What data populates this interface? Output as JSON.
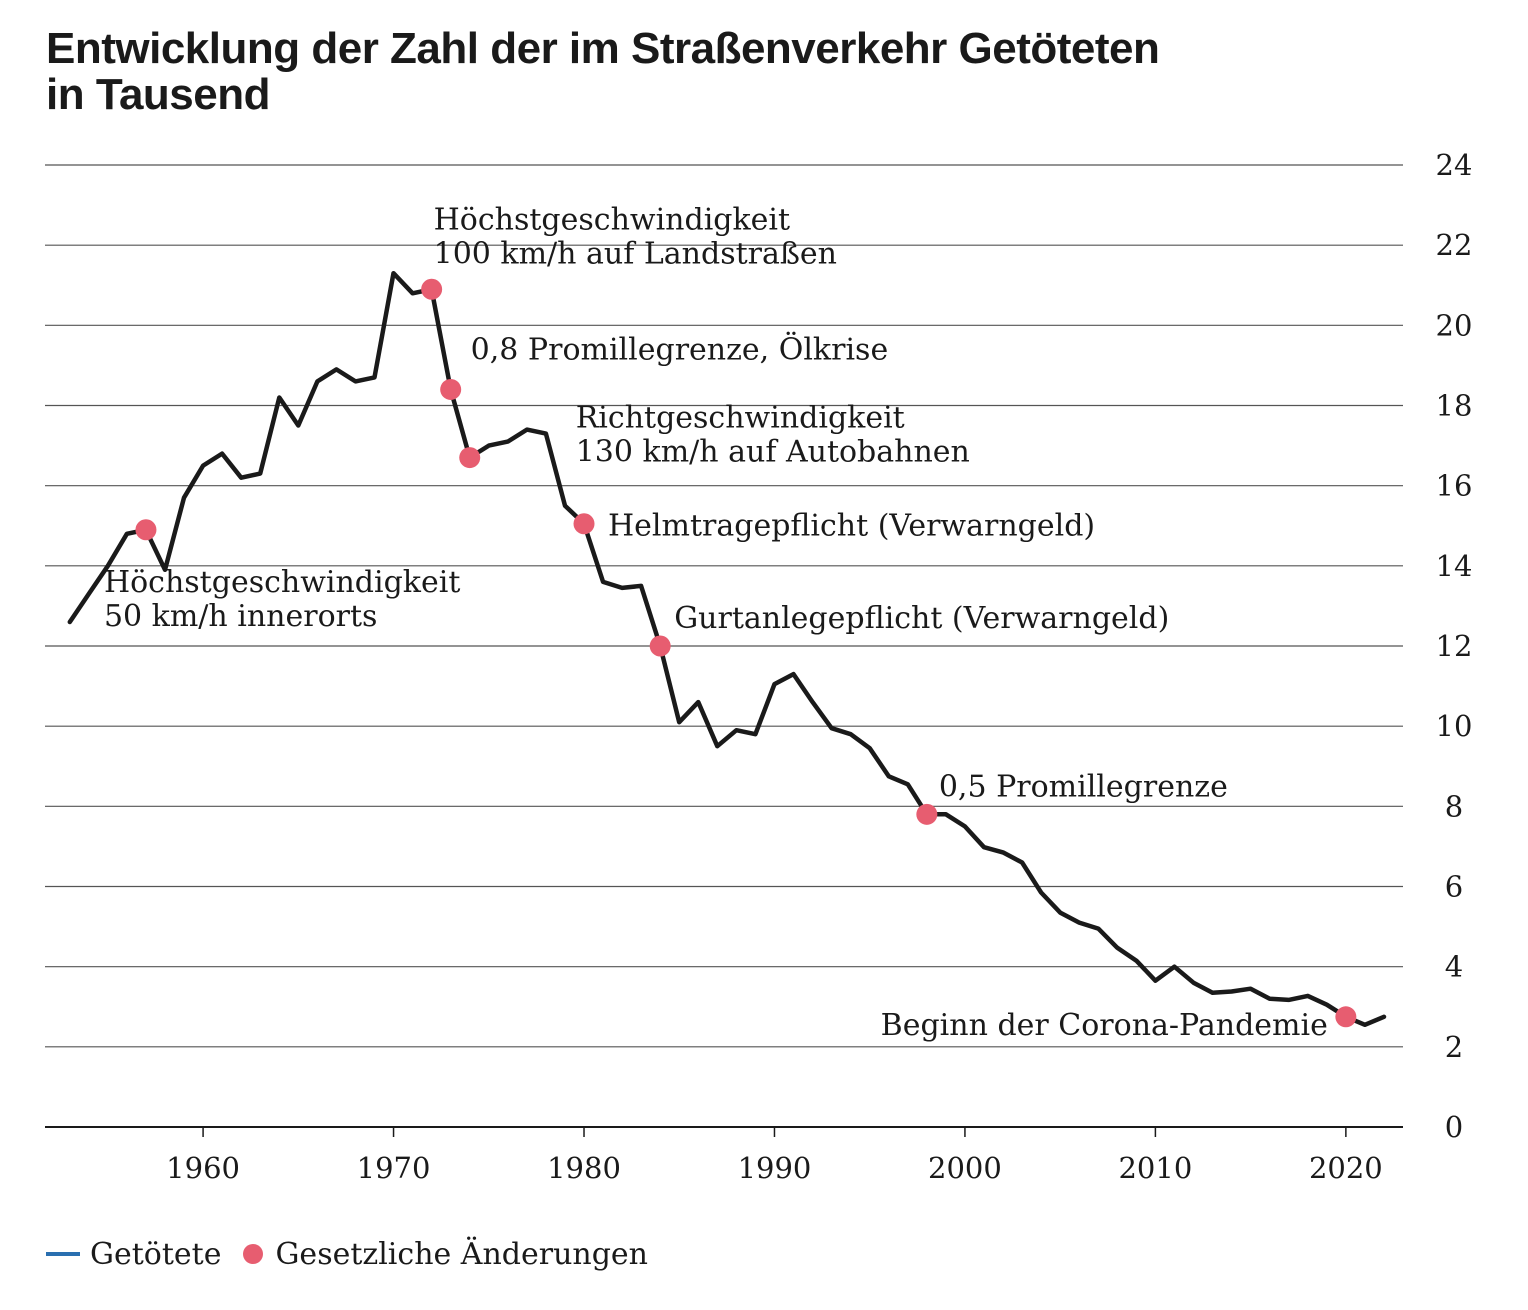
{
  "title": {
    "line1": "Entwicklung der Zahl der im Straßenverkehr Getöteten",
    "line2": "in Tausend"
  },
  "legend": {
    "line_label": "Getötete",
    "dot_label": "Gesetzliche Änderungen"
  },
  "colors": {
    "line": "#1a1a1a",
    "marker": "#e75d70",
    "legend_line": "#2a6fb0",
    "grid": "#555555"
  },
  "chart_data": {
    "type": "line",
    "title": "Entwicklung der Zahl der im Straßenverkehr Getöteten in Tausend",
    "xlabel": "",
    "ylabel": "",
    "xlim": [
      1951.7,
      2023
    ],
    "ylim": [
      0,
      24
    ],
    "x_ticks": [
      1960,
      1970,
      1980,
      1990,
      2000,
      2010,
      2020
    ],
    "y_ticks": [
      0,
      2,
      4,
      6,
      8,
      10,
      12,
      14,
      16,
      18,
      20,
      22,
      24
    ],
    "grid": true,
    "legend_position": "bottom-left",
    "series": [
      {
        "name": "Getötete",
        "x": [
          1953,
          1954,
          1955,
          1956,
          1957,
          1958,
          1959,
          1960,
          1961,
          1962,
          1963,
          1964,
          1965,
          1966,
          1967,
          1968,
          1969,
          1970,
          1971,
          1972,
          1973,
          1974,
          1975,
          1976,
          1977,
          1978,
          1979,
          1980,
          1981,
          1982,
          1983,
          1984,
          1985,
          1986,
          1987,
          1988,
          1989,
          1990,
          1991,
          1992,
          1993,
          1994,
          1995,
          1996,
          1997,
          1998,
          1999,
          2000,
          2001,
          2002,
          2003,
          2004,
          2005,
          2006,
          2007,
          2008,
          2009,
          2010,
          2011,
          2012,
          2013,
          2014,
          2015,
          2016,
          2017,
          2018,
          2019,
          2020,
          2021,
          2022
        ],
        "y": [
          12.6,
          13.3,
          14.0,
          14.8,
          14.9,
          13.9,
          15.7,
          16.5,
          16.8,
          16.2,
          16.3,
          18.2,
          17.5,
          18.6,
          18.9,
          18.6,
          18.7,
          21.3,
          20.8,
          20.9,
          18.4,
          16.7,
          17.0,
          17.1,
          17.4,
          17.3,
          15.5,
          15.05,
          13.6,
          13.45,
          13.5,
          12.0,
          10.1,
          10.6,
          9.5,
          9.9,
          9.8,
          11.05,
          11.3,
          10.6,
          9.95,
          9.8,
          9.45,
          8.75,
          8.55,
          7.8,
          7.8,
          7.5,
          6.98,
          6.85,
          6.6,
          5.85,
          5.35,
          5.1,
          4.95,
          4.47,
          4.15,
          3.65,
          4.0,
          3.6,
          3.35,
          3.38,
          3.45,
          3.2,
          3.17,
          3.27,
          3.05,
          2.75,
          2.55,
          2.75
        ]
      },
      {
        "name": "Gesetzliche Änderungen",
        "points": [
          {
            "x": 1957,
            "y": 14.9,
            "label": [
              "Höchstgeschwindigkeit",
              "50 km/h innerorts"
            ]
          },
          {
            "x": 1972,
            "y": 20.9,
            "label": [
              "Höchstgeschwindigkeit",
              "100 km/h auf Landstraßen"
            ]
          },
          {
            "x": 1973,
            "y": 18.4,
            "label": [
              "0,8 Promillegrenze, Ölkrise"
            ]
          },
          {
            "x": 1974,
            "y": 16.7,
            "label": [
              "Richtgeschwindigkeit",
              "130 km/h auf Autobahnen"
            ]
          },
          {
            "x": 1980,
            "y": 15.05,
            "label": [
              "Helmtragepflicht (Verwarngeld)"
            ]
          },
          {
            "x": 1984,
            "y": 12.0,
            "label": [
              "Gurtanlegepflicht (Verwarngeld)"
            ]
          },
          {
            "x": 1998,
            "y": 7.8,
            "label": [
              "0,5 Promillegrenze"
            ]
          },
          {
            "x": 2020,
            "y": 2.75,
            "label": [
              "Beginn der Corona-Pandemie"
            ]
          }
        ]
      }
    ]
  }
}
